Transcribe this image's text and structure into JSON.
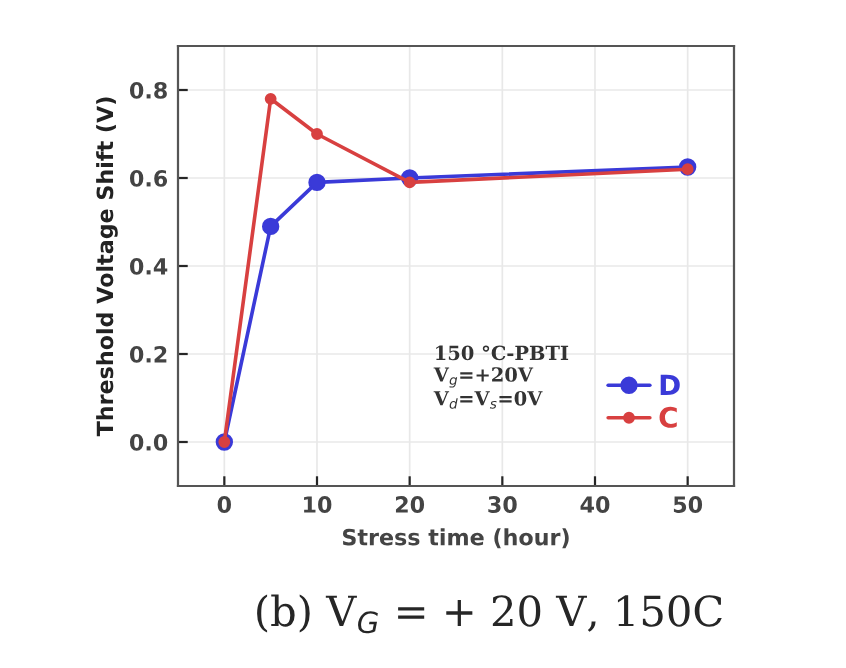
{
  "chart_data": {
    "type": "line",
    "xlabel": "Stress time (hour)",
    "ylabel": "Threshold Voltage Shift (V)",
    "x": [
      0,
      5,
      10,
      20,
      50
    ],
    "series": [
      {
        "name": "D",
        "color": "#3a3ad8",
        "values": [
          0,
          0.49,
          0.59,
          0.6,
          0.625
        ]
      },
      {
        "name": "C",
        "color": "#d84040",
        "values": [
          0,
          0.78,
          0.7,
          0.59,
          0.62
        ]
      }
    ],
    "xlim": [
      -5,
      55
    ],
    "xticks": [
      0,
      10,
      20,
      30,
      40,
      50
    ],
    "ylim": [
      -0.1,
      0.9
    ],
    "yticks": [
      {
        "value": 0,
        "label": "0.0"
      },
      0.2,
      0.4,
      0.6,
      0.8
    ],
    "annotations": [
      "150 °C-PBTI\nV$_{g}$=+20V\nV$_{d}$=V$_{s}$=0V",
      "(b) V$_{G}$ = + 20 V, 150C"
    ],
    "grid": true,
    "legend": "lower right",
    "marker": "circle",
    "line_style": "solid"
  }
}
